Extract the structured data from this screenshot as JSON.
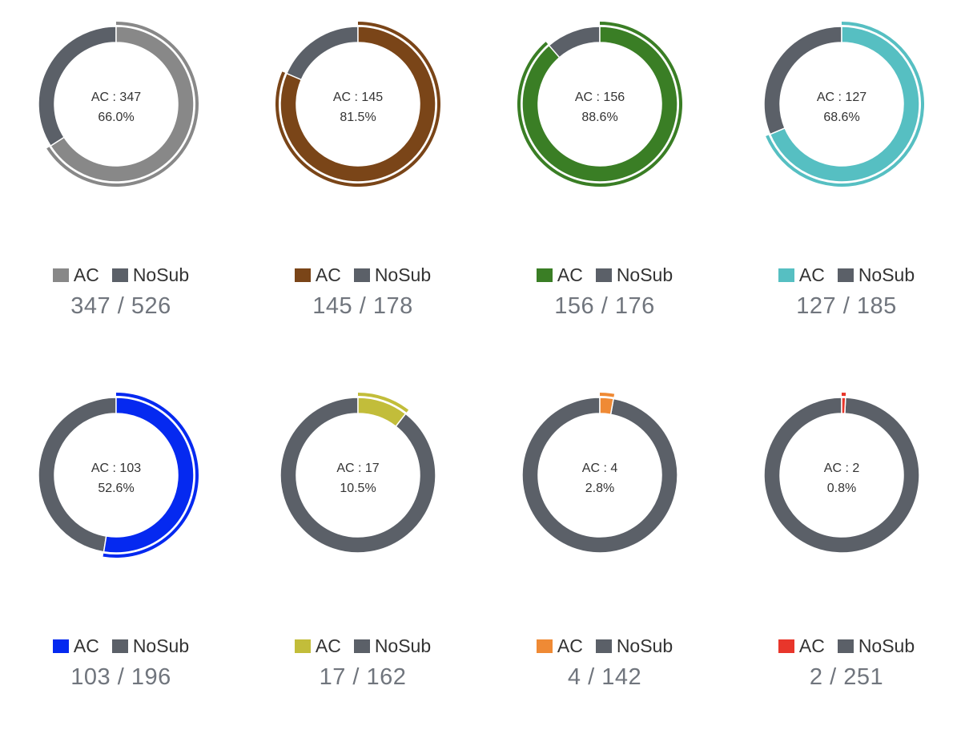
{
  "colors": {
    "nosub": "#5b6068"
  },
  "legend": {
    "ac_label": "AC",
    "nosub_label": "NoSub"
  },
  "chart_data": [
    {
      "type": "pie",
      "title": "",
      "categories": [
        "AC",
        "NoSub"
      ],
      "values": [
        347,
        179
      ],
      "total": 526,
      "center_label": "AC : 347",
      "center_percent": "66.0%",
      "ratio_label": "347 / 526",
      "color": "#888888"
    },
    {
      "type": "pie",
      "title": "",
      "categories": [
        "AC",
        "NoSub"
      ],
      "values": [
        145,
        33
      ],
      "total": 178,
      "center_label": "AC : 145",
      "center_percent": "81.5%",
      "ratio_label": "145 / 178",
      "color": "#7a4518"
    },
    {
      "type": "pie",
      "title": "",
      "categories": [
        "AC",
        "NoSub"
      ],
      "values": [
        156,
        20
      ],
      "total": 176,
      "center_label": "AC : 156",
      "center_percent": "88.6%",
      "ratio_label": "156 / 176",
      "color": "#3a7e25"
    },
    {
      "type": "pie",
      "title": "",
      "categories": [
        "AC",
        "NoSub"
      ],
      "values": [
        127,
        58
      ],
      "total": 185,
      "center_label": "AC : 127",
      "center_percent": "68.6%",
      "ratio_label": "127 / 185",
      "color": "#56bfc2"
    },
    {
      "type": "pie",
      "title": "",
      "categories": [
        "AC",
        "NoSub"
      ],
      "values": [
        103,
        93
      ],
      "total": 196,
      "center_label": "AC : 103",
      "center_percent": "52.6%",
      "ratio_label": "103 / 196",
      "color": "#0529f0"
    },
    {
      "type": "pie",
      "title": "",
      "categories": [
        "AC",
        "NoSub"
      ],
      "values": [
        17,
        145
      ],
      "total": 162,
      "center_label": "AC : 17",
      "center_percent": "10.5%",
      "ratio_label": "17 / 162",
      "color": "#c2bd3a"
    },
    {
      "type": "pie",
      "title": "",
      "categories": [
        "AC",
        "NoSub"
      ],
      "values": [
        4,
        138
      ],
      "total": 142,
      "center_label": "AC : 4",
      "center_percent": "2.8%",
      "ratio_label": "4 / 142",
      "color": "#ef8a35"
    },
    {
      "type": "pie",
      "title": "",
      "categories": [
        "AC",
        "NoSub"
      ],
      "values": [
        2,
        249
      ],
      "total": 251,
      "center_label": "AC : 2",
      "center_percent": "0.8%",
      "ratio_label": "2 / 251",
      "color": "#e8362b"
    }
  ]
}
